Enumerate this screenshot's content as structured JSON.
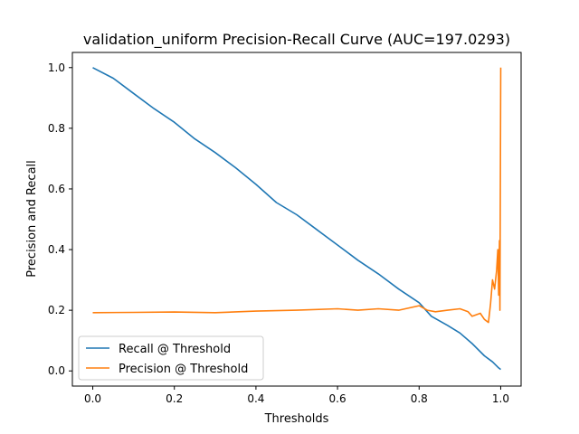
{
  "chart_data": {
    "type": "line",
    "title": "validation_uniform Precision-Recall Curve (AUC=197.0293)",
    "xlabel": "Thresholds",
    "ylabel": "Precision and Recall",
    "xlim": [
      -0.05,
      1.05
    ],
    "ylim": [
      -0.05,
      1.05
    ],
    "xticks": [
      0.0,
      0.2,
      0.4,
      0.6,
      0.8,
      1.0
    ],
    "xtick_labels": [
      "0.0",
      "0.2",
      "0.4",
      "0.6",
      "0.8",
      "1.0"
    ],
    "yticks": [
      0.0,
      0.2,
      0.4,
      0.6,
      0.8,
      1.0
    ],
    "ytick_labels": [
      "0.0",
      "0.2",
      "0.4",
      "0.6",
      "0.8",
      "1.0"
    ],
    "grid": false,
    "legend_position": "lower-left",
    "series": [
      {
        "name": "Recall @ Threshold",
        "color": "#1f77b4",
        "points": [
          [
            0.0,
            1.0
          ],
          [
            0.05,
            0.965
          ],
          [
            0.1,
            0.915
          ],
          [
            0.15,
            0.865
          ],
          [
            0.2,
            0.82
          ],
          [
            0.25,
            0.765
          ],
          [
            0.3,
            0.72
          ],
          [
            0.35,
            0.67
          ],
          [
            0.4,
            0.615
          ],
          [
            0.45,
            0.555
          ],
          [
            0.5,
            0.515
          ],
          [
            0.55,
            0.465
          ],
          [
            0.6,
            0.415
          ],
          [
            0.65,
            0.365
          ],
          [
            0.7,
            0.32
          ],
          [
            0.75,
            0.27
          ],
          [
            0.8,
            0.225
          ],
          [
            0.83,
            0.18
          ],
          [
            0.87,
            0.15
          ],
          [
            0.9,
            0.125
          ],
          [
            0.93,
            0.09
          ],
          [
            0.96,
            0.05
          ],
          [
            0.98,
            0.03
          ],
          [
            0.995,
            0.01
          ],
          [
            1.0,
            0.005
          ]
        ]
      },
      {
        "name": "Precision @ Threshold",
        "color": "#ff7f0e",
        "points": [
          [
            0.0,
            0.192
          ],
          [
            0.1,
            0.193
          ],
          [
            0.2,
            0.194
          ],
          [
            0.3,
            0.192
          ],
          [
            0.4,
            0.197
          ],
          [
            0.5,
            0.2
          ],
          [
            0.6,
            0.205
          ],
          [
            0.65,
            0.2
          ],
          [
            0.7,
            0.205
          ],
          [
            0.75,
            0.2
          ],
          [
            0.8,
            0.215
          ],
          [
            0.82,
            0.2
          ],
          [
            0.84,
            0.195
          ],
          [
            0.87,
            0.2
          ],
          [
            0.9,
            0.205
          ],
          [
            0.92,
            0.195
          ],
          [
            0.93,
            0.18
          ],
          [
            0.95,
            0.19
          ],
          [
            0.96,
            0.17
          ],
          [
            0.97,
            0.16
          ],
          [
            0.975,
            0.22
          ],
          [
            0.98,
            0.3
          ],
          [
            0.985,
            0.27
          ],
          [
            0.99,
            0.33
          ],
          [
            0.993,
            0.4
          ],
          [
            0.995,
            0.25
          ],
          [
            0.997,
            0.43
          ],
          [
            0.998,
            0.2
          ],
          [
            1.0,
            1.0
          ]
        ]
      }
    ]
  }
}
